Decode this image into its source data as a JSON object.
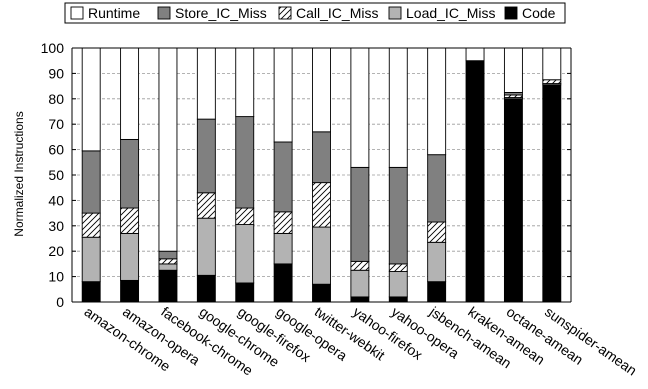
{
  "chart_data": {
    "type": "bar",
    "stacked": true,
    "ylabel": "Normalized Instructions",
    "xlabel": "",
    "ylim": [
      0,
      100
    ],
    "yticks": [
      0,
      10,
      20,
      30,
      40,
      50,
      60,
      70,
      80,
      90,
      100
    ],
    "grid": "horizontal dashed",
    "legend_position": "top",
    "categories": [
      "amazon-chrome",
      "amazon-opera",
      "facebook-chrome",
      "google-chrome",
      "google-firefox",
      "google-opera",
      "twitter-webkit",
      "yahoo-firefox",
      "yahoo-opera",
      "jsbench-amean",
      "kraken-amean",
      "octane-amean",
      "sunspider-amean"
    ],
    "series": [
      {
        "name": "Code",
        "pattern": "solid-black",
        "values": [
          8,
          8.5,
          12.5,
          10.5,
          7.5,
          15,
          7,
          2,
          2,
          8,
          95,
          80,
          85.5
        ]
      },
      {
        "name": "Load_IC_Miss",
        "pattern": "light-gray",
        "values": [
          17.5,
          18.5,
          2.5,
          22.5,
          23,
          12,
          22.5,
          10.5,
          10,
          15.5,
          0,
          0.5,
          0.5
        ]
      },
      {
        "name": "Call_IC_Miss",
        "pattern": "hatched",
        "values": [
          9.5,
          10,
          2,
          10,
          6.5,
          8.5,
          17.5,
          3.5,
          3,
          8,
          0,
          1,
          1.5
        ]
      },
      {
        "name": "Store_IC_Miss",
        "pattern": "dark-gray",
        "values": [
          24.5,
          27,
          3,
          29,
          36,
          27.5,
          20,
          37,
          38,
          26.5,
          0,
          1,
          0
        ]
      },
      {
        "name": "Runtime",
        "pattern": "white",
        "values": [
          40.5,
          36,
          80,
          28,
          27,
          37,
          33,
          47,
          47,
          42,
          5,
          17.5,
          12.5
        ]
      }
    ],
    "legend_order": [
      "Runtime",
      "Store_IC_Miss",
      "Call_IC_Miss",
      "Load_IC_Miss",
      "Code"
    ]
  },
  "colors": {
    "Runtime": "#ffffff",
    "Store_IC_Miss": "#808080",
    "Call_IC_Miss": "#ffffff",
    "Load_IC_Miss": "#b3b3b3",
    "Code": "#000000",
    "grid": "#9a9a9a",
    "axis": "#000000"
  }
}
